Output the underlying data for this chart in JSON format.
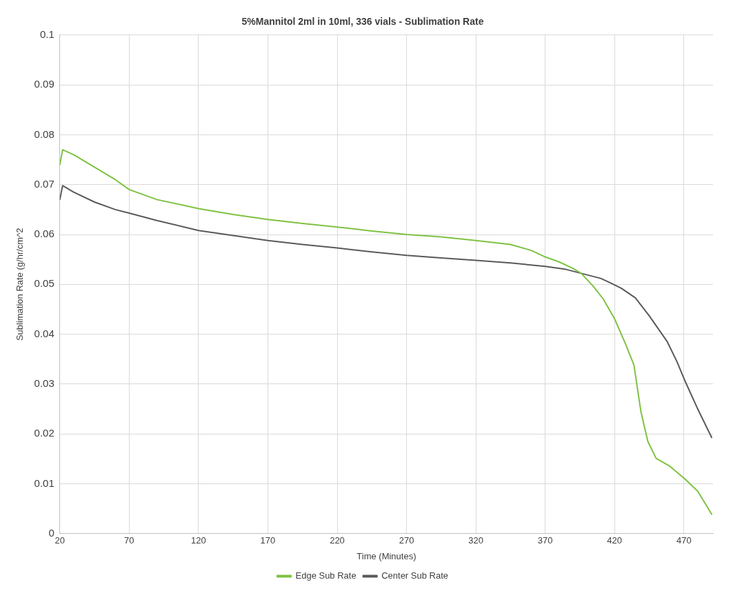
{
  "chart_data": {
    "type": "line",
    "title": "5%Mannitol 2ml in 10ml, 336 vials - Sublimation Rate",
    "xlabel": "Time (Minutes)",
    "ylabel": "Sublimation Rate (g/hr/cm^2",
    "xlim": [
      20,
      491
    ],
    "xticks": [
      20,
      70,
      120,
      170,
      220,
      270,
      320,
      370,
      420,
      470
    ],
    "ylim": [
      0,
      0.1
    ],
    "yticks": [
      0,
      0.01,
      0.02,
      0.03,
      0.04,
      0.05,
      0.06,
      0.07,
      0.08,
      0.09,
      0.1
    ],
    "grid": true,
    "legend": "bottom",
    "marker": "none",
    "line_style": "solid",
    "series": [
      {
        "name": "Edge Sub Rate",
        "color": "#7dc242",
        "x": [
          20,
          22,
          30,
          45,
          60,
          70,
          90,
          120,
          145,
          170,
          195,
          220,
          245,
          270,
          295,
          320,
          345,
          360,
          370,
          380,
          390,
          396,
          405,
          412,
          420,
          428,
          434,
          439,
          444,
          450,
          460,
          471,
          480,
          490
        ],
        "values": [
          0.074,
          0.077,
          0.076,
          0.0735,
          0.071,
          0.069,
          0.067,
          0.0652,
          0.064,
          0.063,
          0.0622,
          0.0615,
          0.0607,
          0.06,
          0.0595,
          0.0588,
          0.058,
          0.0568,
          0.0555,
          0.0545,
          0.0532,
          0.0522,
          0.0495,
          0.047,
          0.0431,
          0.038,
          0.0338,
          0.0245,
          0.0185,
          0.0151,
          0.0135,
          0.0109,
          0.0085,
          0.0039
        ]
      },
      {
        "name": "Center Sub Rate",
        "color": "#595959",
        "x": [
          20,
          22,
          30,
          45,
          60,
          70,
          90,
          120,
          145,
          170,
          195,
          220,
          245,
          270,
          295,
          320,
          345,
          370,
          385,
          396,
          410,
          417,
          425,
          435,
          445,
          458,
          465,
          471,
          480,
          490
        ],
        "values": [
          0.067,
          0.0698,
          0.0685,
          0.0665,
          0.065,
          0.0643,
          0.0628,
          0.0608,
          0.0598,
          0.0588,
          0.058,
          0.0573,
          0.0565,
          0.0558,
          0.0553,
          0.0548,
          0.0543,
          0.0536,
          0.053,
          0.0522,
          0.0512,
          0.0503,
          0.0492,
          0.0473,
          0.0437,
          0.0385,
          0.0345,
          0.0305,
          0.025,
          0.0193
        ]
      }
    ]
  }
}
